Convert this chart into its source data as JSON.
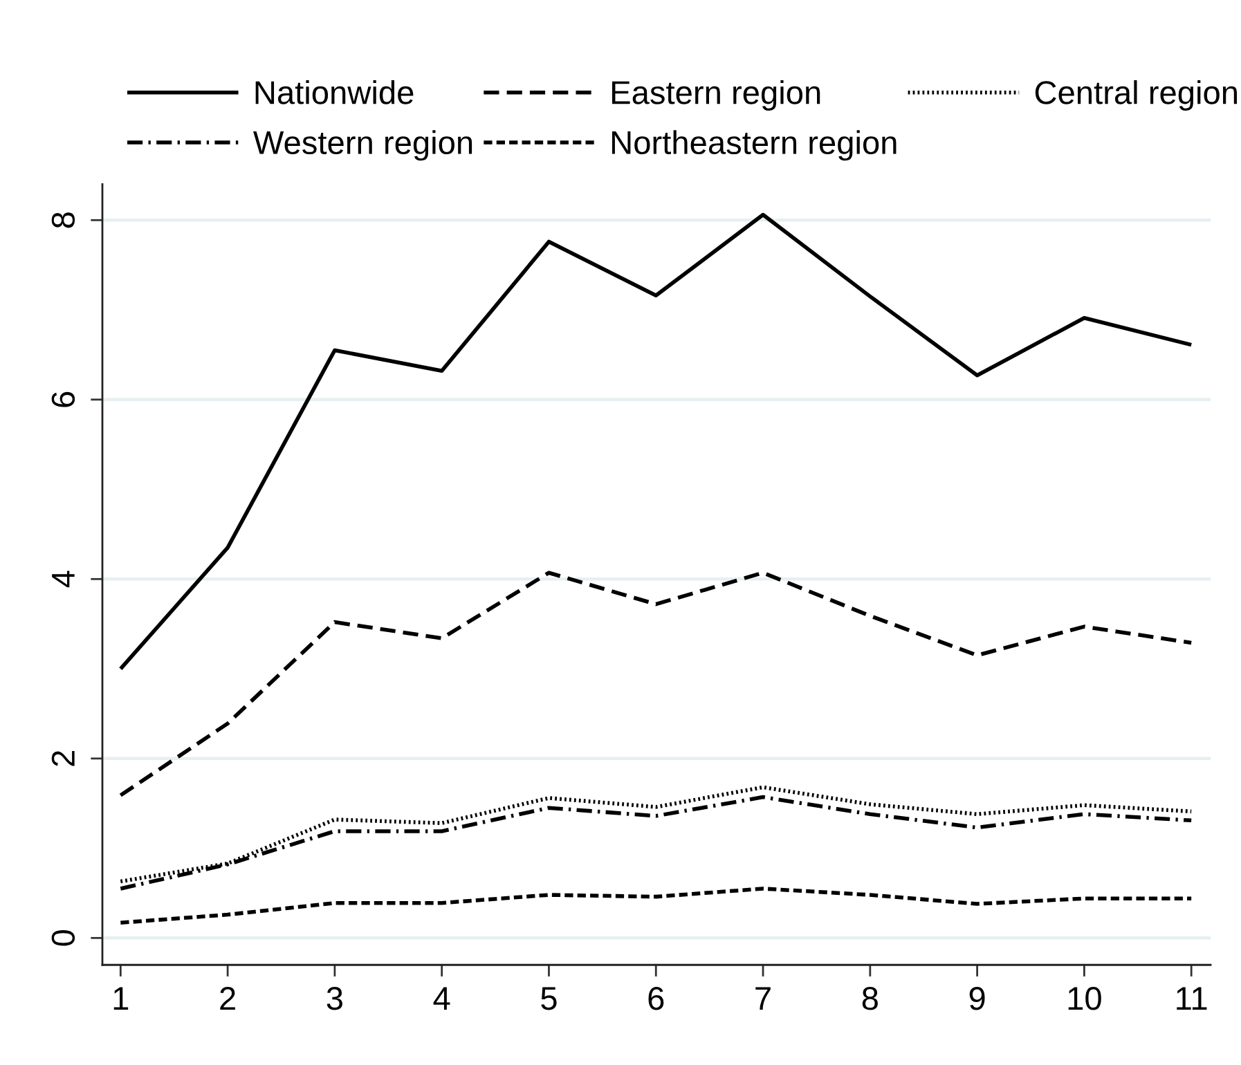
{
  "chart_data": {
    "type": "line",
    "x": [
      1,
      2,
      3,
      4,
      5,
      6,
      7,
      8,
      9,
      10,
      11
    ],
    "xlim": [
      0.83,
      11.18
    ],
    "xticks": [
      1,
      2,
      3,
      4,
      5,
      6,
      7,
      8,
      9,
      10,
      11
    ],
    "ylim": [
      -0.3,
      8.4
    ],
    "yticks": [
      0,
      2,
      4,
      6,
      8
    ],
    "grid": "y",
    "legend": "top",
    "series": [
      {
        "name": "Nationwide",
        "color": "#000000",
        "line_style": "solid",
        "values": [
          3.0,
          4.35,
          6.55,
          6.32,
          7.76,
          7.16,
          8.06,
          7.15,
          6.27,
          6.91,
          6.61
        ]
      },
      {
        "name": "Eastern region",
        "color": "#000000",
        "line_style": "dashed",
        "values": [
          1.59,
          2.39,
          3.52,
          3.34,
          4.07,
          3.72,
          4.07,
          3.59,
          3.15,
          3.47,
          3.29
        ]
      },
      {
        "name": "Central region",
        "color": "#000000",
        "line_style": "dotted",
        "values": [
          0.63,
          0.83,
          1.32,
          1.28,
          1.56,
          1.46,
          1.68,
          1.49,
          1.38,
          1.48,
          1.41
        ]
      },
      {
        "name": "Western region",
        "color": "#000000",
        "line_style": "dashdot",
        "values": [
          0.55,
          0.82,
          1.19,
          1.19,
          1.45,
          1.36,
          1.57,
          1.38,
          1.23,
          1.38,
          1.31
        ]
      },
      {
        "name": "Northeastern region",
        "color": "#000000",
        "line_style": "short dashed",
        "values": [
          0.17,
          0.26,
          0.39,
          0.39,
          0.48,
          0.46,
          0.55,
          0.48,
          0.38,
          0.44,
          0.44
        ]
      }
    ]
  }
}
